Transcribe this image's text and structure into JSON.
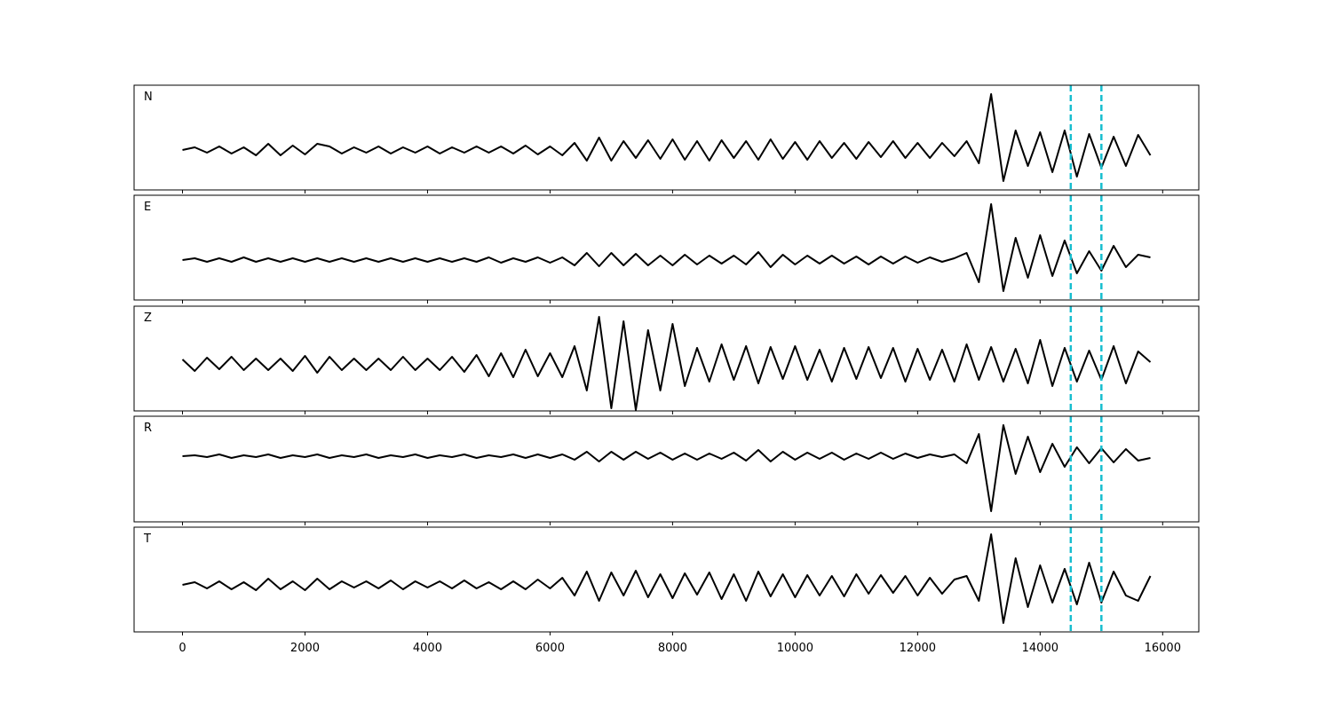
{
  "chart_data": {
    "type": "line",
    "x": [
      0,
      200,
      400,
      600,
      800,
      1000,
      1200,
      1400,
      1600,
      1800,
      2000,
      2200,
      2400,
      2600,
      2800,
      3000,
      3200,
      3400,
      3600,
      3800,
      4000,
      4200,
      4400,
      4600,
      4800,
      5000,
      5200,
      5400,
      5600,
      5800,
      6000,
      6200,
      6400,
      6600,
      6800,
      7000,
      7200,
      7400,
      7600,
      7800,
      8000,
      8200,
      8400,
      8600,
      8800,
      9000,
      9200,
      9400,
      9600,
      9800,
      10000,
      10200,
      10400,
      10600,
      10800,
      11000,
      11200,
      11400,
      11600,
      11800,
      12000,
      12200,
      12400,
      12600,
      12800,
      13000,
      13200,
      13400,
      13600,
      13800,
      14000,
      14200,
      14400,
      14600,
      14800,
      15000,
      15200,
      15400,
      15600,
      15800
    ],
    "xlim": [
      -790,
      16590
    ],
    "xticks": [
      0,
      2000,
      4000,
      6000,
      8000,
      10000,
      12000,
      14000,
      16000
    ],
    "color": "#000000",
    "vlines": {
      "values": [
        14500,
        15000
      ],
      "color": "#17becf",
      "style": "dashed"
    },
    "series": [
      {
        "name": "N",
        "ylim": [
          -45,
          73
        ],
        "values": [
          0,
          3,
          -3,
          4,
          -4,
          3,
          -6,
          7,
          -6,
          5,
          -5,
          7,
          4,
          -4,
          3,
          -3,
          4,
          -4,
          3,
          -3,
          4,
          -4,
          3,
          -3,
          4,
          -3,
          4,
          -4,
          5,
          -5,
          4,
          -6,
          8,
          -12,
          14,
          -12,
          10,
          -9,
          11,
          -10,
          12,
          -11,
          10,
          -12,
          11,
          -9,
          10,
          -11,
          12,
          -10,
          9,
          -11,
          10,
          -9,
          8,
          -10,
          9,
          -8,
          10,
          -9,
          8,
          -9,
          8,
          -7,
          10,
          -15,
          63,
          -35,
          22,
          -18,
          20,
          -25,
          22,
          -30,
          18,
          -20,
          15,
          -18,
          17,
          -6
        ]
      },
      {
        "name": "E",
        "ylim": [
          -45,
          73
        ],
        "values": [
          0,
          2,
          -2,
          2,
          -2,
          3,
          -2,
          2,
          -2,
          2,
          -2,
          2,
          -2,
          2,
          -2,
          2,
          -2,
          2,
          -2,
          2,
          -2,
          2,
          -2,
          2,
          -2,
          3,
          -3,
          2,
          -2,
          3,
          -3,
          3,
          -6,
          8,
          -7,
          8,
          -6,
          7,
          -6,
          5,
          -6,
          6,
          -5,
          5,
          -4,
          5,
          -5,
          9,
          -8,
          6,
          -5,
          5,
          -4,
          5,
          -4,
          4,
          -5,
          4,
          -4,
          4,
          -3,
          3,
          -2,
          2,
          8,
          -25,
          63,
          -35,
          25,
          -20,
          28,
          -18,
          22,
          -15,
          10,
          -12,
          16,
          -8,
          6,
          3
        ]
      },
      {
        "name": "Z",
        "ylim": [
          -53,
          65
        ],
        "values": [
          5,
          -8,
          7,
          -6,
          8,
          -7,
          6,
          -7,
          6,
          -8,
          9,
          -10,
          8,
          -7,
          6,
          -7,
          6,
          -7,
          8,
          -7,
          6,
          -7,
          8,
          -9,
          10,
          -14,
          12,
          -15,
          16,
          -14,
          12,
          -15,
          20,
          -30,
          53,
          -50,
          48,
          -52,
          38,
          -30,
          45,
          -25,
          18,
          -20,
          22,
          -18,
          20,
          -22,
          19,
          -17,
          20,
          -18,
          16,
          -20,
          18,
          -17,
          19,
          -16,
          18,
          -20,
          17,
          -18,
          16,
          -20,
          22,
          -18,
          19,
          -20,
          17,
          -22,
          27,
          -25,
          18,
          -20,
          15,
          -18,
          20,
          -22,
          14,
          2
        ]
      },
      {
        "name": "R",
        "ylim": [
          -74,
          45
        ],
        "values": [
          0,
          1,
          -1,
          2,
          -2,
          1,
          -1,
          2,
          -2,
          1,
          -1,
          2,
          -2,
          1,
          -1,
          2,
          -2,
          1,
          -1,
          2,
          -2,
          1,
          -1,
          2,
          -2,
          1,
          -1,
          2,
          -2,
          2,
          -2,
          2,
          -4,
          5,
          -6,
          5,
          -4,
          5,
          -3,
          4,
          -4,
          3,
          -4,
          3,
          -3,
          4,
          -5,
          7,
          -6,
          5,
          -4,
          4,
          -3,
          4,
          -4,
          3,
          -3,
          4,
          -3,
          3,
          -2,
          2,
          -1,
          2,
          -8,
          25,
          -62,
          35,
          -20,
          22,
          -18,
          14,
          -12,
          10,
          -8,
          9,
          -7,
          8,
          -5,
          -2
        ]
      },
      {
        "name": "T",
        "ylim": [
          -53,
          65
        ],
        "values": [
          0,
          3,
          -4,
          4,
          -5,
          3,
          -6,
          7,
          -5,
          4,
          -6,
          7,
          -5,
          4,
          -3,
          4,
          -4,
          5,
          -5,
          4,
          -3,
          4,
          -4,
          5,
          -4,
          3,
          -5,
          4,
          -5,
          6,
          -4,
          8,
          -12,
          15,
          -18,
          14,
          -12,
          16,
          -14,
          12,
          -15,
          13,
          -11,
          14,
          -16,
          12,
          -18,
          15,
          -13,
          12,
          -14,
          11,
          -12,
          10,
          -13,
          12,
          -10,
          11,
          -9,
          10,
          -12,
          8,
          -10,
          6,
          10,
          -18,
          57,
          -43,
          30,
          -25,
          22,
          -20,
          18,
          -22,
          25,
          -20,
          15,
          -12,
          -18,
          10
        ]
      }
    ]
  }
}
